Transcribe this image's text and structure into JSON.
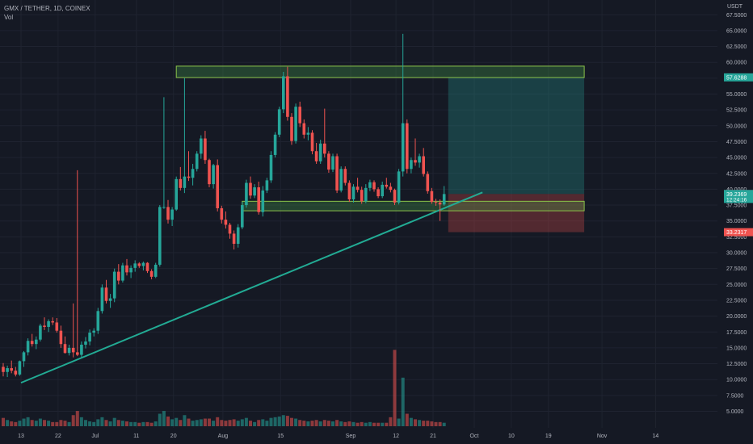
{
  "header": {
    "symbol": "GMX / TETHER, 1D, COINEX",
    "volume_label": "Vol",
    "currency": "USDT"
  },
  "colors": {
    "background": "#151924",
    "up": "#26a69a",
    "down": "#ef5350",
    "grid": "#1f2330",
    "text": "#b2b5be",
    "zone_border": "#8bc34a",
    "zone_fill": "rgba(76,175,80,0.28)",
    "trendline": "#22ab94"
  },
  "chart_data": {
    "type": "candlestick",
    "y_axis": {
      "min": 5,
      "max": 70,
      "ticks": [
        "5.0000",
        "7.5000",
        "10.0000",
        "12.5000",
        "15.0000",
        "17.5000",
        "20.0000",
        "22.5000",
        "25.0000",
        "27.5000",
        "30.0000",
        "32.5000",
        "35.0000",
        "37.5000",
        "40.0000",
        "42.5000",
        "45.0000",
        "47.5000",
        "50.0000",
        "52.5000",
        "55.0000",
        "57.5000",
        "60.0000",
        "62.5000",
        "65.0000",
        "67.5000"
      ]
    },
    "x_axis": {
      "labels": [
        {
          "label": "13",
          "day": 0
        },
        {
          "label": "22",
          "day": 9
        },
        {
          "label": "Jul",
          "day": 18
        },
        {
          "label": "11",
          "day": 28
        },
        {
          "label": "20",
          "day": 37
        },
        {
          "label": "Aug",
          "day": 49
        },
        {
          "label": "15",
          "day": 63
        },
        {
          "label": "Sep",
          "day": 80
        },
        {
          "label": "12",
          "day": 91
        },
        {
          "label": "21",
          "day": 100
        },
        {
          "label": "Oct",
          "day": 110
        },
        {
          "label": "10",
          "day": 119
        },
        {
          "label": "19",
          "day": 128
        },
        {
          "label": "Nov",
          "day": 141
        },
        {
          "label": "14",
          "day": 154
        }
      ]
    },
    "candles": [
      [
        12,
        12.6,
        10.5,
        11.2,
        1.2
      ],
      [
        11.2,
        12.2,
        10.4,
        11.8,
        0.9
      ],
      [
        11.8,
        13.0,
        11.0,
        11.4,
        0.7
      ],
      [
        11.4,
        12.0,
        10.5,
        10.8,
        0.6
      ],
      [
        10.8,
        13.0,
        10.6,
        12.9,
        0.8
      ],
      [
        12.9,
        14.5,
        12.0,
        14.3,
        1.1
      ],
      [
        14.3,
        16.5,
        13.8,
        16.1,
        1.3
      ],
      [
        16.1,
        17.2,
        15.2,
        15.6,
        0.9
      ],
      [
        15.6,
        16.8,
        14.8,
        16.3,
        0.8
      ],
      [
        16.3,
        18.8,
        16.0,
        18.5,
        1.1
      ],
      [
        18.5,
        19.8,
        17.8,
        18.3,
        0.9
      ],
      [
        18.3,
        19.5,
        17.5,
        19.2,
        0.8
      ],
      [
        19.2,
        19.8,
        18.6,
        19.0,
        0.6
      ],
      [
        19.0,
        19.7,
        17.4,
        17.7,
        0.6
      ],
      [
        17.7,
        18.5,
        15.0,
        15.6,
        0.9
      ],
      [
        15.6,
        16.8,
        14.1,
        14.2,
        0.8
      ],
      [
        14.2,
        15.5,
        13.8,
        15.0,
        0.6
      ],
      [
        15.0,
        22.0,
        13.5,
        14.3,
        1.6
      ],
      [
        14.3,
        43.0,
        13.7,
        13.9,
        2.2
      ],
      [
        13.9,
        16.0,
        13.5,
        15.5,
        1.3
      ],
      [
        15.5,
        16.7,
        14.9,
        16.0,
        0.9
      ],
      [
        16.0,
        17.9,
        15.4,
        17.4,
        0.7
      ],
      [
        17.4,
        18.1,
        16.8,
        17.7,
        0.6
      ],
      [
        17.7,
        21.3,
        17.2,
        20.8,
        1.0
      ],
      [
        20.8,
        25.0,
        20.4,
        24.5,
        1.3
      ],
      [
        24.5,
        25.7,
        22.0,
        22.4,
        0.9
      ],
      [
        22.4,
        23.5,
        21.3,
        22.8,
        0.7
      ],
      [
        22.8,
        27.5,
        22.2,
        27.0,
        1.2
      ],
      [
        27.0,
        28.2,
        25.0,
        25.6,
        0.9
      ],
      [
        25.6,
        28.4,
        25.3,
        28.0,
        0.8
      ],
      [
        28.0,
        29.0,
        26.4,
        26.9,
        0.7
      ],
      [
        26.9,
        28.0,
        26.0,
        27.6,
        0.6
      ],
      [
        27.6,
        28.8,
        27.0,
        28.3,
        0.6
      ],
      [
        28.3,
        28.5,
        27.6,
        27.9,
        0.5
      ],
      [
        27.9,
        28.6,
        27.2,
        28.4,
        0.6
      ],
      [
        28.4,
        28.5,
        26.8,
        27.1,
        0.6
      ],
      [
        27.1,
        27.4,
        25.8,
        26.2,
        0.5
      ],
      [
        26.2,
        28.4,
        26.0,
        28.1,
        0.7
      ],
      [
        28.1,
        37.5,
        27.8,
        37.2,
        1.8
      ],
      [
        37.2,
        54.5,
        36.9,
        37.2,
        2.2
      ],
      [
        37.2,
        38.3,
        34.6,
        35.2,
        1.4
      ],
      [
        35.2,
        37.2,
        34.2,
        36.8,
        1.0
      ],
      [
        36.8,
        42.0,
        36.6,
        41.6,
        1.2
      ],
      [
        41.6,
        43.5,
        39.8,
        40.2,
        0.9
      ],
      [
        40.2,
        57.5,
        39.4,
        42.0,
        1.6
      ],
      [
        42.0,
        46.0,
        41.3,
        41.8,
        1.1
      ],
      [
        41.8,
        44.0,
        40.6,
        43.2,
        0.8
      ],
      [
        43.2,
        46.0,
        42.8,
        45.6,
        0.9
      ],
      [
        45.6,
        48.5,
        44.8,
        48.0,
        1.0
      ],
      [
        48.0,
        49.2,
        44.0,
        44.6,
        1.1
      ],
      [
        44.6,
        44.8,
        40.3,
        40.8,
        1.1
      ],
      [
        40.8,
        44.0,
        40.1,
        43.8,
        0.8
      ],
      [
        43.8,
        44.7,
        36.5,
        37.0,
        1.3
      ],
      [
        37.0,
        37.4,
        34.6,
        35.2,
        0.9
      ],
      [
        35.2,
        36.5,
        33.8,
        34.4,
        0.8
      ],
      [
        34.4,
        34.7,
        32.2,
        33.0,
        0.9
      ],
      [
        33.0,
        33.5,
        30.5,
        31.4,
        1.0
      ],
      [
        31.4,
        34.5,
        30.8,
        34.0,
        0.8
      ],
      [
        34.0,
        38.0,
        33.7,
        37.5,
        1.0
      ],
      [
        37.5,
        41.5,
        37.1,
        41.0,
        1.2
      ],
      [
        41.0,
        42.0,
        38.5,
        39.0,
        0.8
      ],
      [
        39.0,
        40.8,
        38.6,
        40.3,
        0.6
      ],
      [
        40.3,
        41.2,
        36.0,
        36.4,
        0.9
      ],
      [
        36.4,
        40.5,
        35.7,
        39.8,
        1.0
      ],
      [
        39.8,
        41.8,
        39.4,
        41.4,
        0.8
      ],
      [
        41.4,
        46.0,
        41.0,
        45.4,
        1.2
      ],
      [
        45.4,
        49.0,
        45.0,
        48.6,
        1.3
      ],
      [
        48.6,
        53.0,
        48.2,
        52.6,
        1.4
      ],
      [
        52.6,
        58.5,
        52.0,
        57.8,
        1.6
      ],
      [
        57.8,
        59.3,
        50.8,
        51.4,
        1.5
      ],
      [
        51.4,
        52.0,
        47.0,
        47.6,
        1.2
      ],
      [
        47.6,
        53.5,
        47.2,
        53.0,
        1.1
      ],
      [
        53.0,
        53.8,
        49.8,
        50.4,
        0.9
      ],
      [
        50.4,
        51.0,
        48.0,
        48.6,
        0.8
      ],
      [
        48.6,
        49.8,
        47.7,
        48.9,
        0.7
      ],
      [
        48.9,
        49.3,
        45.5,
        46.0,
        0.8
      ],
      [
        46.0,
        47.3,
        44.0,
        44.4,
        0.9
      ],
      [
        44.4,
        47.8,
        44.0,
        47.2,
        0.7
      ],
      [
        47.2,
        52.7,
        45.0,
        45.6,
        0.9
      ],
      [
        45.6,
        46.0,
        42.6,
        43.1,
        0.8
      ],
      [
        43.1,
        45.6,
        42.7,
        45.2,
        0.7
      ],
      [
        45.2,
        45.6,
        39.4,
        39.8,
        0.9
      ],
      [
        39.8,
        43.6,
        39.5,
        43.2,
        0.7
      ],
      [
        43.2,
        43.6,
        40.6,
        41.0,
        0.6
      ],
      [
        41.0,
        41.4,
        38.0,
        38.4,
        0.7
      ],
      [
        38.4,
        40.8,
        37.9,
        40.4,
        0.6
      ],
      [
        40.4,
        41.8,
        39.5,
        39.9,
        0.5
      ],
      [
        39.9,
        40.4,
        37.7,
        38.1,
        0.6
      ],
      [
        38.1,
        40.8,
        37.8,
        40.2,
        0.5
      ],
      [
        40.2,
        41.5,
        39.7,
        41.1,
        0.6
      ],
      [
        41.1,
        41.4,
        39.6,
        40.0,
        0.5
      ],
      [
        40.0,
        40.3,
        38.6,
        38.9,
        0.5
      ],
      [
        38.9,
        41.2,
        38.6,
        40.7,
        0.5
      ],
      [
        40.7,
        41.8,
        40.1,
        40.4,
        0.5
      ],
      [
        40.4,
        41.0,
        39.5,
        39.9,
        1.3
      ],
      [
        39.9,
        40.1,
        37.5,
        37.9,
        11.0
      ],
      [
        37.9,
        43.2,
        37.6,
        42.8,
        1.1
      ],
      [
        42.8,
        64.5,
        42.0,
        50.4,
        7.0
      ],
      [
        50.4,
        51.0,
        42.5,
        43.2,
        1.8
      ],
      [
        43.2,
        45.0,
        42.5,
        44.6,
        1.2
      ],
      [
        44.6,
        48.0,
        43.7,
        44.2,
        1.0
      ],
      [
        44.2,
        45.6,
        43.4,
        45.2,
        0.9
      ],
      [
        45.2,
        46.5,
        42.0,
        42.4,
        0.8
      ],
      [
        42.4,
        42.8,
        39.3,
        39.7,
        0.8
      ],
      [
        39.7,
        40.2,
        37.7,
        38.0,
        0.7
      ],
      [
        38.0,
        38.5,
        37.4,
        37.9,
        0.6
      ],
      [
        37.9,
        38.4,
        35.0,
        37.6,
        0.6
      ],
      [
        37.6,
        40.5,
        37.4,
        39.24,
        0.5
      ]
    ],
    "zones": [
      {
        "label": "resistance",
        "top": 59.4,
        "bottom": 57.6,
        "start_day": 42,
        "end_day": 141
      },
      {
        "label": "support",
        "top": 38.1,
        "bottom": 36.6,
        "start_day": 58,
        "end_day": 141
      }
    ],
    "trendline": {
      "from": {
        "day": 0,
        "price": 9.5
      },
      "to": {
        "day": 112,
        "price": 39.5
      }
    },
    "position": {
      "start_day": 108,
      "end_day": 141,
      "entry": 39.2517,
      "target": 57.6288,
      "stop": 33.2317
    },
    "price_labels": [
      {
        "value": "57.6288",
        "price": 57.6288,
        "color": "#26a69a"
      },
      {
        "value": "39.2517",
        "price": 39.2517,
        "color": "#787b86"
      },
      {
        "value": "39.2369",
        "price": 39.2369,
        "color": "#26a69a",
        "sub": "12:24:16"
      },
      {
        "value": "33.2317",
        "price": 33.2317,
        "color": "#ef5350"
      }
    ]
  }
}
